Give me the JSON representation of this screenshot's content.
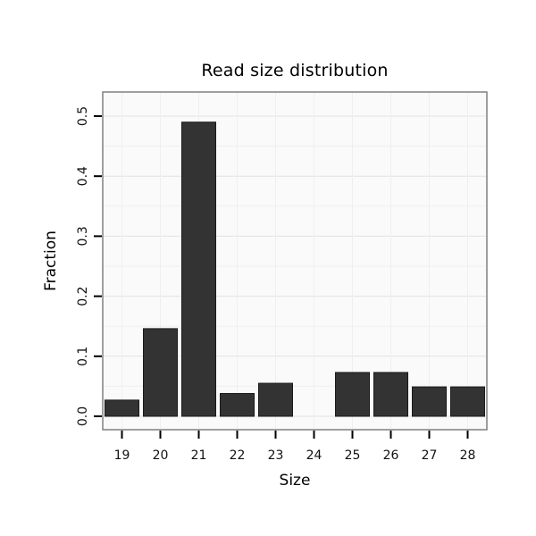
{
  "chart_data": {
    "type": "bar",
    "title": "Read size distribution",
    "xlabel": "Size",
    "ylabel": "Fraction",
    "categories": [
      "19",
      "20",
      "21",
      "22",
      "23",
      "24",
      "25",
      "26",
      "27",
      "28"
    ],
    "values": [
      0.027,
      0.146,
      0.49,
      0.038,
      0.055,
      0,
      0.073,
      0.073,
      0.049,
      0.049
    ],
    "ylim": [
      0,
      0.52
    ],
    "yticks": [
      0,
      0.1,
      0.2,
      0.3,
      0.4,
      0.5
    ],
    "ytick_labels": [
      "0.0",
      "0.1",
      "0.2",
      "0.3",
      "0.4",
      "0.5"
    ],
    "grid": true,
    "legend_position": "none",
    "bar_color": "#333333",
    "bar_border": "#1a1a1a",
    "panel_bg": "#fafafa",
    "grid_major": "#e2e2e2",
    "grid_minor": "#efefef",
    "axis_color": "#000000",
    "panel_border_color": "#808080",
    "tick_label_color": "#111111"
  }
}
